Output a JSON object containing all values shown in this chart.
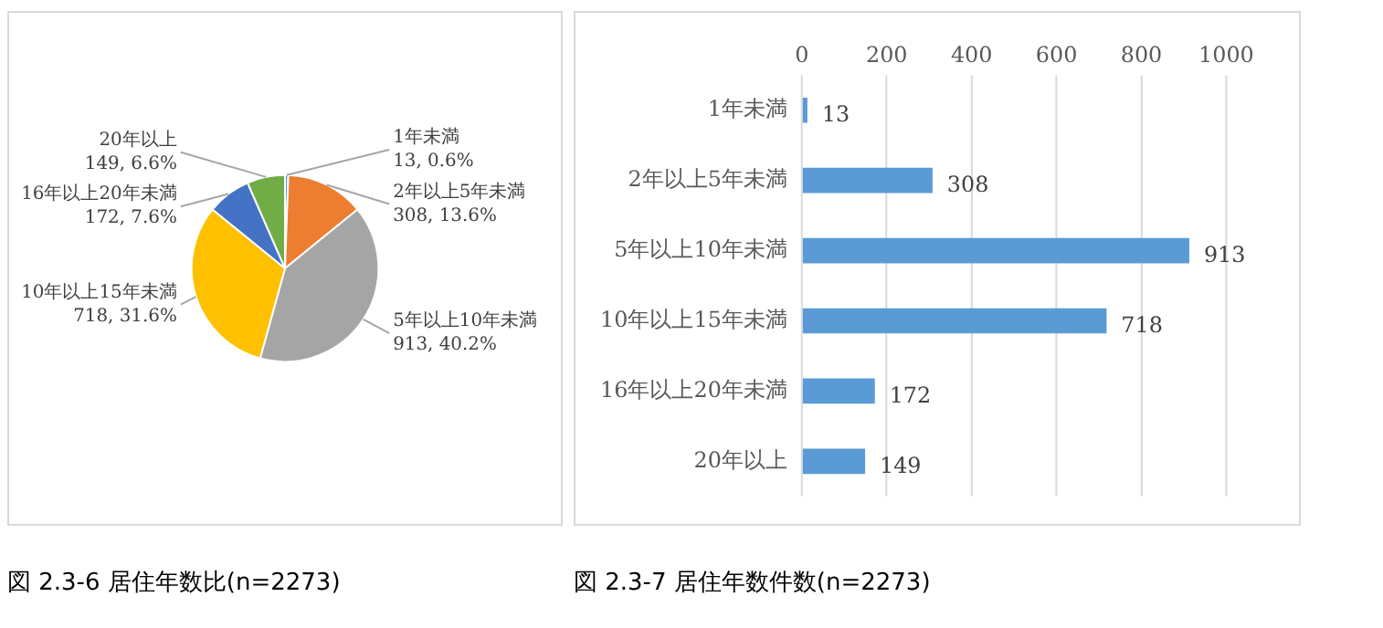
{
  "chart_data": [
    {
      "type": "pie",
      "title": "図 2.3-6 居住年数比(n=2273)",
      "categories": [
        "1年未満",
        "2年以上5年未満",
        "5年以上10年未満",
        "10年以上15年未満",
        "16年以上20年未満",
        "20年以上"
      ],
      "values": [
        13,
        308,
        913,
        718,
        172,
        149
      ],
      "colors": [
        "#5b9bd5",
        "#ed7d31",
        "#a5a5a5",
        "#ffc000",
        "#4472c4",
        "#70ad47"
      ],
      "value_labels": [
        "13, 0.6%",
        "308, 13.6%",
        "913, 40.2%",
        "718, 31.6%",
        "172, 7.6%",
        "149, 6.6%"
      ]
    },
    {
      "type": "bar",
      "title": "図 2.3-7 居住年数件数(n=2273)",
      "orientation": "horizontal",
      "categories": [
        "1年未満",
        "2年以上5年未満",
        "5年以上10年未満",
        "10年以上15年未満",
        "16年以上20年未満",
        "20年以上"
      ],
      "values": [
        13,
        308,
        913,
        718,
        172,
        149
      ],
      "color": "#5b9bd5",
      "xlim": [
        0,
        1000
      ],
      "xticks": [
        0,
        200,
        400,
        600,
        800,
        1000
      ],
      "grid": "x",
      "data_labels": true
    }
  ]
}
